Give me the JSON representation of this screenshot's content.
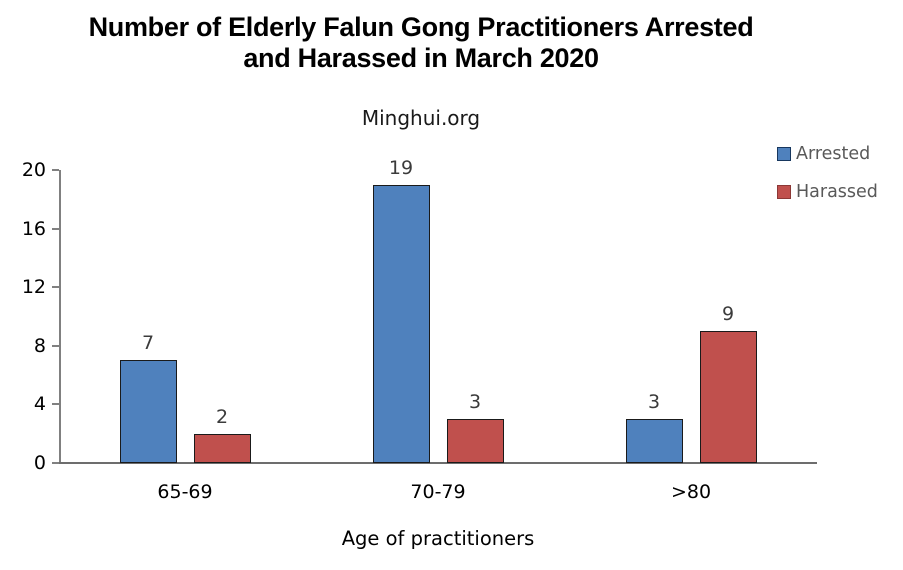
{
  "header": {
    "title_lines": [
      "Number of Elderly Falun Gong Practitioners Arrested",
      "and Harassed in March 2020"
    ],
    "subtitle": "Minghui.org"
  },
  "chart_data": {
    "type": "bar",
    "title": "Number of Elderly Falun Gong Practitioners Arrested and Harassed in March 2020",
    "subtitle": "Minghui.org",
    "categories": [
      "65-69",
      "70-79",
      ">80"
    ],
    "series": [
      {
        "name": "Arrested",
        "color": "#4F81BD",
        "border_color": "#17375E",
        "values": [
          7,
          19,
          3
        ]
      },
      {
        "name": "Harassed",
        "color": "#C0504D",
        "border_color": "#8C3836",
        "values": [
          2,
          3,
          9
        ]
      }
    ],
    "xlabel": "Age of practitioners",
    "ylabel": "",
    "ylim": [
      0,
      20
    ],
    "yticks": [
      0,
      4,
      8,
      12,
      16,
      20
    ],
    "grid": false,
    "legend_position": "top-right",
    "data_labels": true
  },
  "colors": {
    "arrested": "#4F81BD",
    "harassed": "#C0504D",
    "bar_border": "#1A1A1A",
    "axis_line": "#808080",
    "legend_text": "#595959",
    "data_label_text": "#3B3B3B"
  }
}
